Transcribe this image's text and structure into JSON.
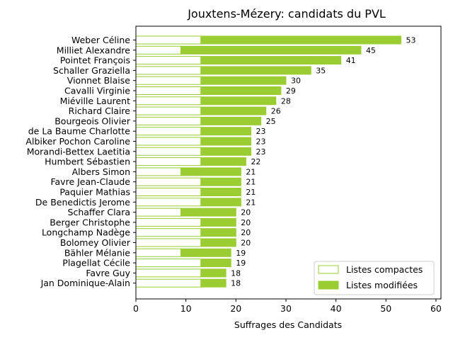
{
  "chart_data": {
    "type": "bar",
    "orientation": "horizontal",
    "stacked": true,
    "title": "Jouxtens-Mézery: candidats du PVL",
    "xlabel": "Suffrages des Candidats",
    "ylabel": "",
    "xlim": [
      0,
      61
    ],
    "xticks": [
      0,
      10,
      20,
      30,
      40,
      50,
      60
    ],
    "grid": false,
    "legend_position": "bottom-right",
    "colors": {
      "bar": "#9acd32",
      "edge": "#9acd32",
      "hollow": "#ffffff"
    },
    "categories": [
      "Weber Céline",
      "Milliet Alexandre",
      "Pointet François",
      "Schaller Graziella",
      "Vionnet Blaise",
      "Cavalli Virginie",
      "Miéville Laurent",
      "Richard Claire",
      "Bourgeois Olivier",
      "de La Baume Charlotte",
      "Albiker Pochon Caroline",
      "Morandi-Bettex Laetitia",
      "Humbert Sébastien",
      "Albers Simon",
      "Favre Jean-Claude",
      "Paquier Mathias",
      "De Benedictis Jerome",
      "Schaffer Clara",
      "Berger Christophe",
      "Longchamp Nadège",
      "Bolomey Olivier",
      "Bähler Mélanie",
      "Plagellat Cécile",
      "Favre Guy",
      "Jan Dominique-Alain"
    ],
    "series": [
      {
        "name": "Listes compactes",
        "values": [
          13,
          9,
          13,
          13,
          13,
          13,
          13,
          13,
          13,
          13,
          13,
          13,
          13,
          9,
          13,
          13,
          13,
          9,
          13,
          13,
          13,
          9,
          13,
          13,
          13
        ]
      },
      {
        "name": "Listes modifiées",
        "values": [
          40,
          36,
          28,
          22,
          17,
          16,
          15,
          13,
          12,
          10,
          10,
          10,
          9,
          12,
          8,
          8,
          8,
          11,
          7,
          7,
          7,
          10,
          6,
          5,
          5
        ]
      }
    ],
    "totals": [
      53,
      45,
      41,
      35,
      30,
      29,
      28,
      26,
      25,
      23,
      23,
      23,
      22,
      21,
      21,
      21,
      21,
      20,
      20,
      20,
      20,
      19,
      19,
      18,
      18
    ]
  }
}
